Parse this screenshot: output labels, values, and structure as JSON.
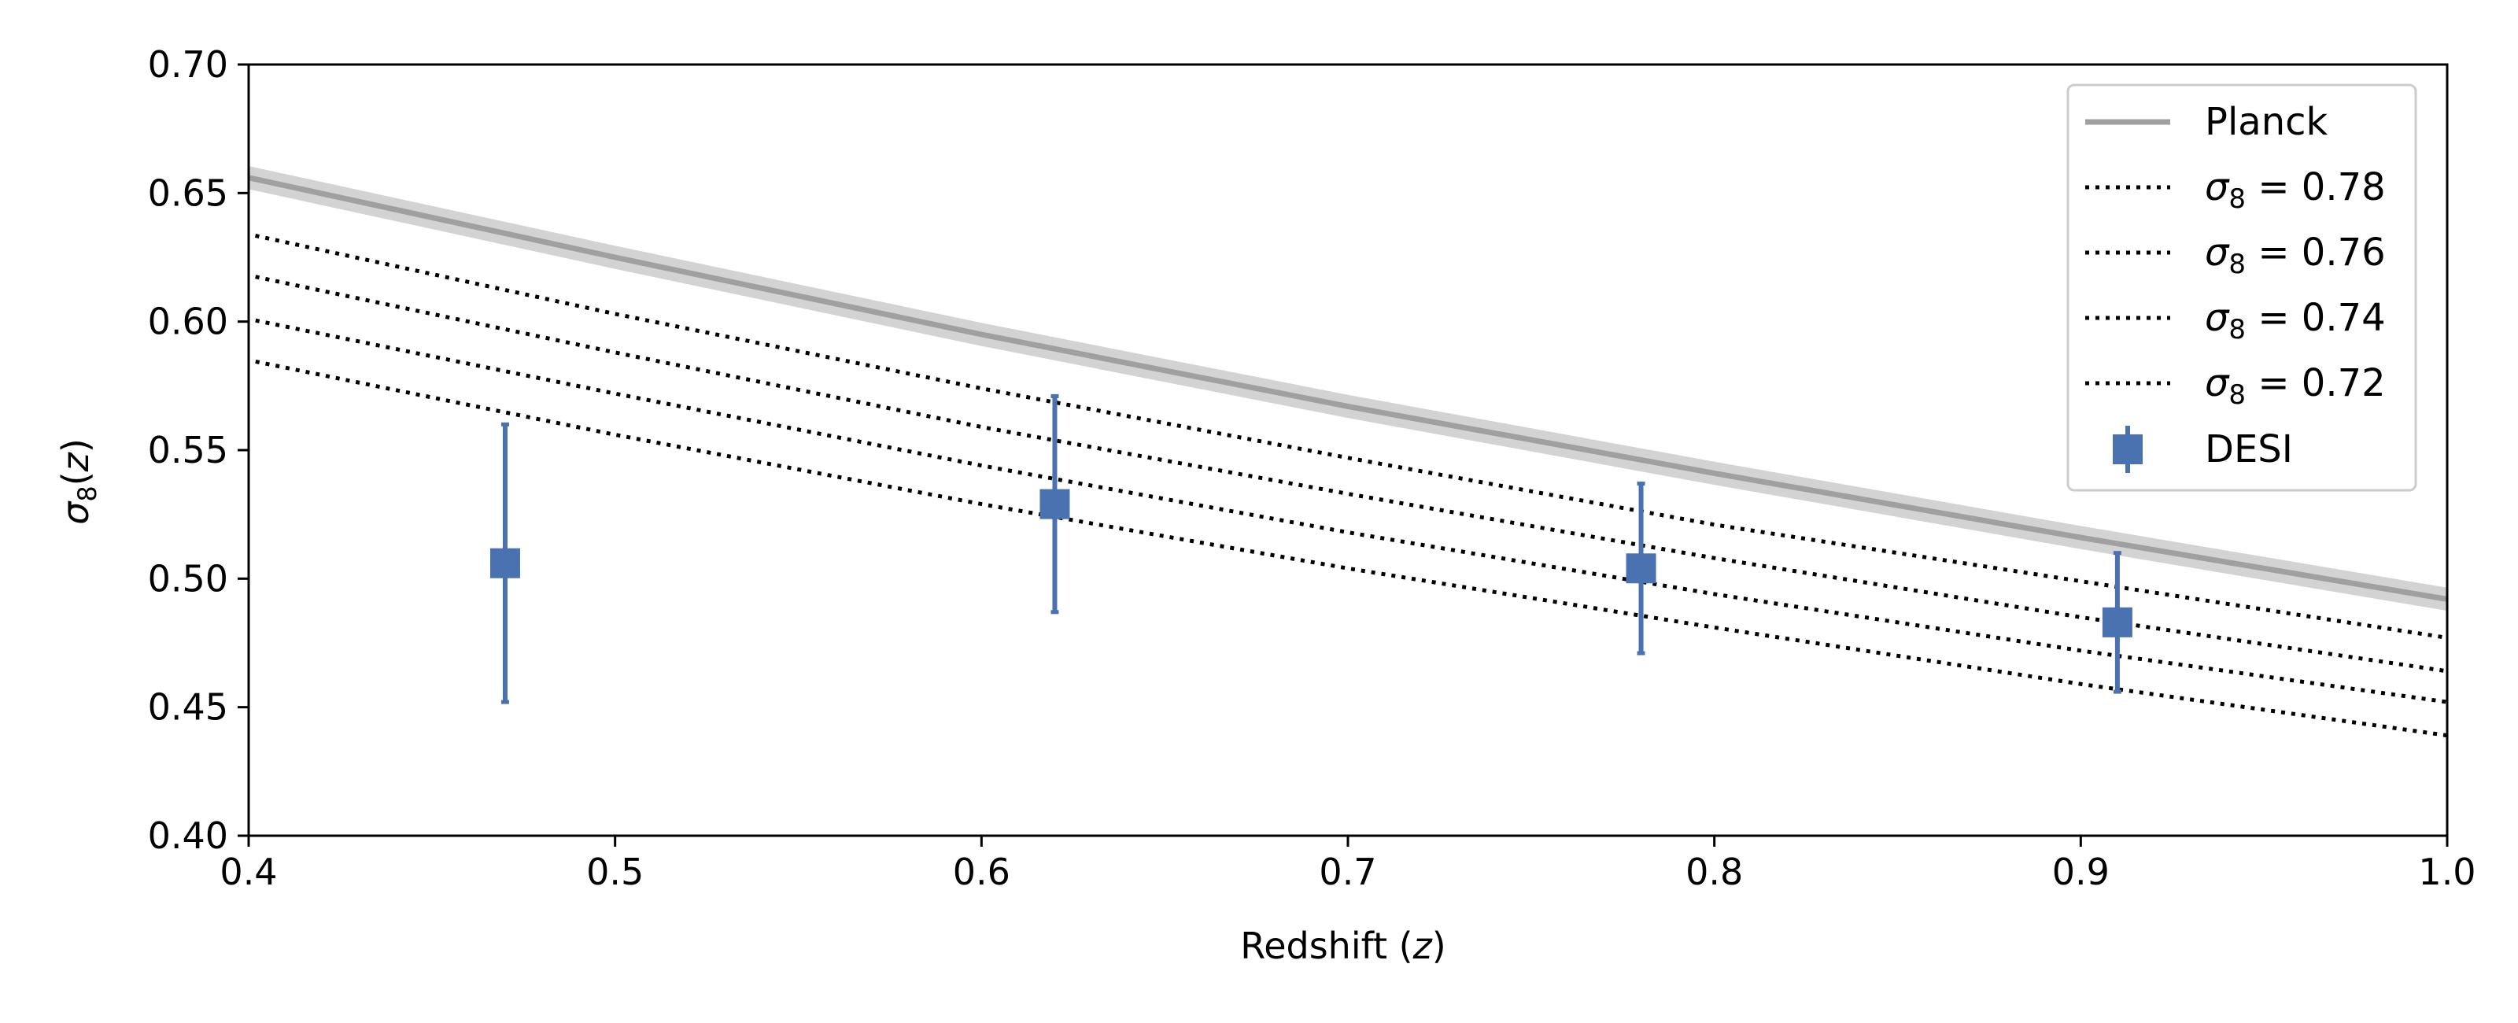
{
  "chart_data": {
    "type": "line",
    "xlabel": "Redshift (z)",
    "ylabel": "σ8(z)",
    "xlim": [
      0.4,
      1.0
    ],
    "ylim": [
      0.4,
      0.7
    ],
    "x_ticks": [
      0.4,
      0.5,
      0.6,
      0.7,
      0.8,
      0.9,
      1.0
    ],
    "x_tick_labels": [
      "0.4",
      "0.5",
      "0.6",
      "0.7",
      "0.8",
      "0.9",
      "1.0"
    ],
    "y_ticks": [
      0.4,
      0.45,
      0.5,
      0.55,
      0.6,
      0.65,
      0.7
    ],
    "y_tick_labels": [
      "0.40",
      "0.45",
      "0.50",
      "0.55",
      "0.60",
      "0.65",
      "0.70"
    ],
    "grid": false,
    "legend_position": "top-right",
    "series": [
      {
        "name": "Planck",
        "style": "solid",
        "color": "#a0a0a0",
        "band_color": "#d3d3d3",
        "band_halfwidth": 0.0045,
        "x": [
          0.4,
          0.5,
          0.6,
          0.7,
          0.8,
          0.9,
          1.0
        ],
        "y": [
          0.656,
          0.625,
          0.595,
          0.567,
          0.541,
          0.516,
          0.492
        ]
      },
      {
        "name": "σ8 = 0.78",
        "style": "dotted",
        "color": "#000000",
        "x": [
          0.4,
          0.5,
          0.6,
          0.7,
          0.8,
          0.9,
          1.0
        ],
        "y": [
          0.634,
          0.603,
          0.574,
          0.547,
          0.521,
          0.499,
          0.477
        ]
      },
      {
        "name": "σ8 = 0.76",
        "style": "dotted",
        "color": "#000000",
        "x": [
          0.4,
          0.5,
          0.6,
          0.7,
          0.8,
          0.9,
          1.0
        ],
        "y": [
          0.618,
          0.588,
          0.559,
          0.533,
          0.508,
          0.485,
          0.464
        ]
      },
      {
        "name": "σ8 = 0.74",
        "style": "dotted",
        "color": "#000000",
        "x": [
          0.4,
          0.5,
          0.6,
          0.7,
          0.8,
          0.9,
          1.0
        ],
        "y": [
          0.601,
          0.572,
          0.544,
          0.518,
          0.494,
          0.472,
          0.452
        ]
      },
      {
        "name": "σ8 = 0.72",
        "style": "dotted",
        "color": "#000000",
        "x": [
          0.4,
          0.5,
          0.6,
          0.7,
          0.8,
          0.9,
          1.0
        ],
        "y": [
          0.585,
          0.556,
          0.529,
          0.504,
          0.481,
          0.459,
          0.439
        ]
      },
      {
        "name": "DESI",
        "style": "errorbar",
        "color": "#4a72b0",
        "points": [
          {
            "x": 0.47,
            "y": 0.506,
            "yerr": 0.054
          },
          {
            "x": 0.62,
            "y": 0.529,
            "yerr": 0.042
          },
          {
            "x": 0.78,
            "y": 0.504,
            "yerr": 0.033
          },
          {
            "x": 0.91,
            "y": 0.483,
            "yerr": 0.027
          }
        ]
      }
    ]
  }
}
